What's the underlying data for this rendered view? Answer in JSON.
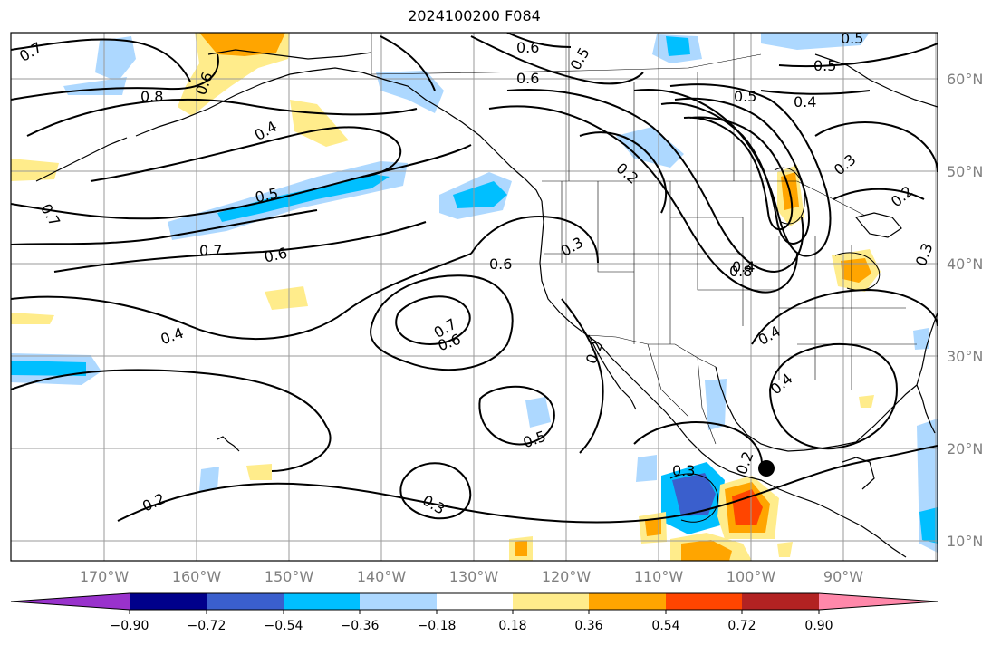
{
  "title": "2024100200 F084",
  "lon_labels": [
    "170°W",
    "160°W",
    "150°W",
    "140°W",
    "130°W",
    "120°W",
    "110°W",
    "100°W",
    "90°W"
  ],
  "lat_labels": [
    "60°N",
    "50°N",
    "40°N",
    "30°N",
    "20°N",
    "10°N"
  ],
  "colorbar": {
    "ticks": [
      "−0.90",
      "−0.72",
      "−0.54",
      "−0.36",
      "−0.18",
      "0.18",
      "0.36",
      "0.54",
      "0.72",
      "0.90"
    ],
    "colors": [
      "#9932cc",
      "#00008b",
      "#3a5fcd",
      "#00bfff",
      "#add8ff",
      "#ffffff",
      "#ffec8b",
      "#ffa500",
      "#ff4500",
      "#b22222",
      "#ff88aa"
    ]
  },
  "contour_labels": [
    "0.7",
    "0.6",
    "0.5",
    "0.6",
    "0.5",
    "0.4",
    "0.8",
    "0.6",
    "0.4",
    "0.5",
    "0.7",
    "0.6",
    "0.4",
    "0.5",
    "0.5",
    "0.4",
    "0.2",
    "0.4",
    "0.3",
    "0.2",
    "0.7",
    "0.6",
    "0.6",
    "0.3",
    "0.8",
    "0.2",
    "0.2",
    "0.5",
    "0.3",
    "0.4",
    "0.3",
    "0.2",
    "0.3",
    "0.7"
  ],
  "marker": "station-dot"
}
